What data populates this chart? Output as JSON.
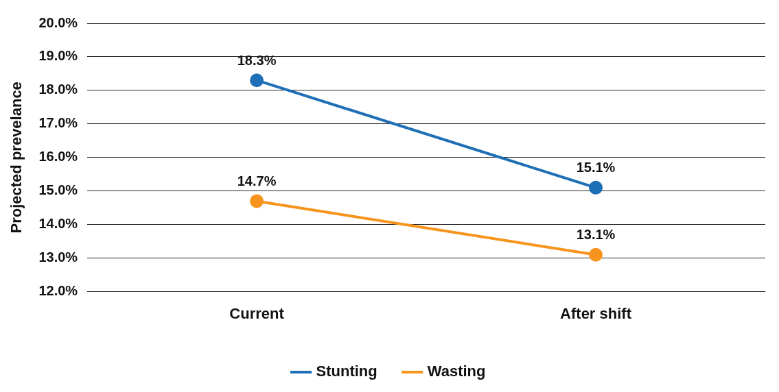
{
  "chart_data": {
    "type": "line",
    "ylabel": "Projected prevelance",
    "categories": [
      "Current",
      "After shift"
    ],
    "series": [
      {
        "name": "Stunting",
        "color": "#1f6fb6",
        "values": [
          18.3,
          15.1
        ],
        "value_labels": [
          "18.3%",
          "15.1%"
        ]
      },
      {
        "name": "Wasting",
        "color": "#f7941d",
        "values": [
          14.7,
          13.1
        ],
        "value_labels": [
          "14.7%",
          "13.1%"
        ]
      }
    ],
    "ylim": [
      12,
      20
    ],
    "yticks": [
      {
        "value": 12,
        "label": "12.0%"
      },
      {
        "value": 13,
        "label": "13.0%"
      },
      {
        "value": 14,
        "label": "14.0%"
      },
      {
        "value": 15,
        "label": "15.0%"
      },
      {
        "value": 16,
        "label": "16.0%"
      },
      {
        "value": 17,
        "label": "17.0%"
      },
      {
        "value": 18,
        "label": "18.0%"
      },
      {
        "value": 19,
        "label": "19.0%"
      },
      {
        "value": 20,
        "label": "20.0%"
      }
    ],
    "grid": "y",
    "legend": "bottom",
    "marker": "circle",
    "line_style": "solid"
  }
}
